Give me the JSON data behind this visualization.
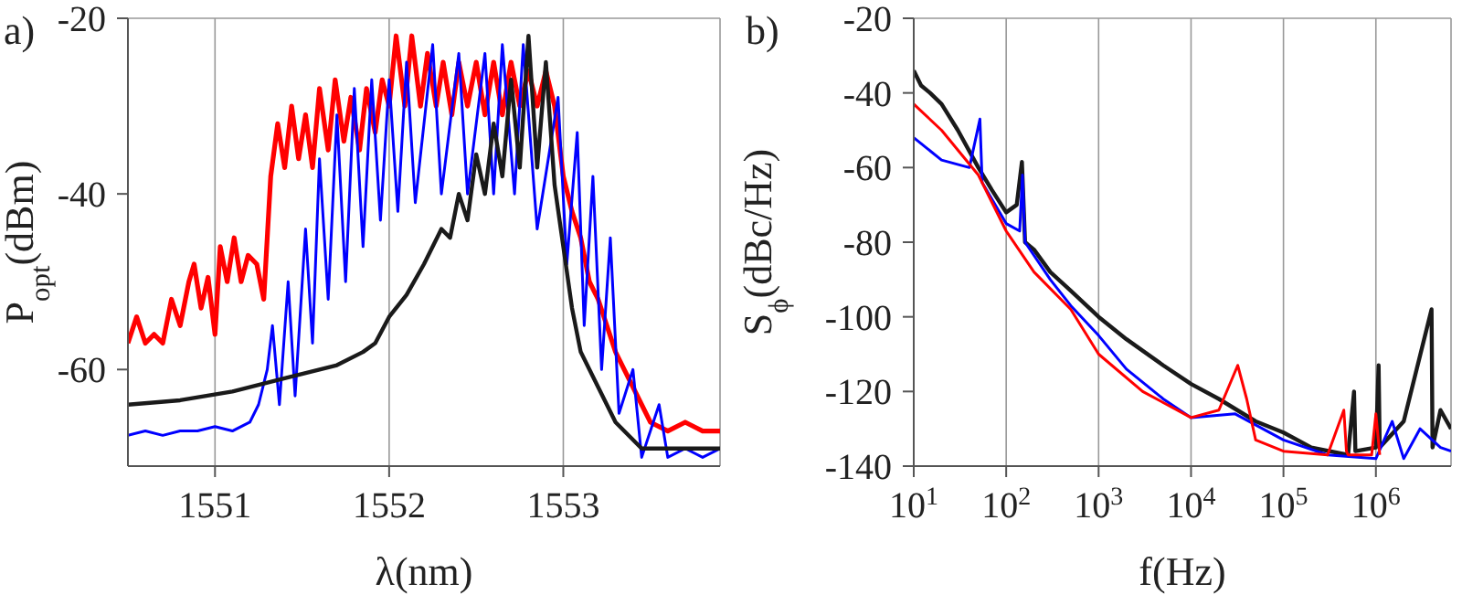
{
  "chart_data": [
    {
      "type": "line",
      "title": "a)",
      "xlabel": "λ(nm)",
      "ylabel": "P$_{opt}$(dBm)",
      "xlim": [
        1550.5,
        1553.9
      ],
      "xticks": [
        1551,
        1552,
        1553
      ],
      "ylim": [
        -71,
        -20
      ],
      "yticks": [
        -60,
        -40,
        -20
      ],
      "grid": true,
      "series": [
        {
          "color": "#ff0000",
          "x": [
            1550.5,
            1550.55,
            1550.6,
            1550.65,
            1550.7,
            1550.75,
            1550.8,
            1550.85,
            1550.88,
            1550.92,
            1550.96,
            1551.0,
            1551.03,
            1551.07,
            1551.11,
            1551.15,
            1551.19,
            1551.24,
            1551.28,
            1551.32,
            1551.36,
            1551.4,
            1551.44,
            1551.48,
            1551.52,
            1551.56,
            1551.6,
            1551.65,
            1551.69,
            1551.74,
            1551.78,
            1551.83,
            1551.87,
            1551.92,
            1551.96,
            1552.0,
            1552.04,
            1552.09,
            1552.13,
            1552.18,
            1552.22,
            1552.27,
            1552.31,
            1552.36,
            1552.4,
            1552.45,
            1552.5,
            1552.55,
            1552.6,
            1552.65,
            1552.7,
            1552.75,
            1552.8,
            1552.85,
            1552.9,
            1552.95,
            1553.0,
            1553.05,
            1553.1,
            1553.15,
            1553.2,
            1553.25,
            1553.3,
            1553.35,
            1553.4,
            1553.45,
            1553.5,
            1553.6,
            1553.7,
            1553.8,
            1553.9
          ],
          "values": [
            -57,
            -54,
            -57,
            -56,
            -57,
            -52,
            -55,
            -50,
            -48,
            -53,
            -49.5,
            -56,
            -46,
            -50,
            -45,
            -50,
            -47,
            -48,
            -52,
            -38,
            -32,
            -37,
            -30,
            -36,
            -31,
            -37,
            -28,
            -35,
            -27,
            -34,
            -29,
            -35,
            -28,
            -33,
            -27,
            -30,
            -22,
            -30,
            -22,
            -30,
            -24,
            -30,
            -25,
            -31,
            -25,
            -30,
            -25,
            -31,
            -25,
            -31,
            -25,
            -30,
            -26,
            -30,
            -26,
            -30,
            -38,
            -42,
            -45,
            -50,
            -52,
            -55,
            -58,
            -60,
            -62,
            -64,
            -66,
            -67,
            -66,
            -67,
            -67
          ]
        },
        {
          "color": "#0000ff",
          "x": [
            1550.5,
            1550.6,
            1550.7,
            1550.8,
            1550.9,
            1551.0,
            1551.1,
            1551.2,
            1551.25,
            1551.3,
            1551.33,
            1551.37,
            1551.42,
            1551.46,
            1551.52,
            1551.56,
            1551.6,
            1551.65,
            1551.7,
            1551.75,
            1551.8,
            1551.85,
            1551.9,
            1551.95,
            1552.0,
            1552.05,
            1552.1,
            1552.15,
            1552.25,
            1552.3,
            1552.4,
            1552.45,
            1552.55,
            1552.6,
            1552.65,
            1552.72,
            1552.77,
            1552.85,
            1552.97,
            1553.02,
            1553.08,
            1553.12,
            1553.17,
            1553.22,
            1553.27,
            1553.32,
            1553.4,
            1553.45,
            1553.55,
            1553.6,
            1553.7,
            1553.8,
            1553.9
          ],
          "values": [
            -67.5,
            -67,
            -67.5,
            -67,
            -67,
            -66.5,
            -67,
            -66,
            -64,
            -60,
            -55,
            -64,
            -50,
            -63,
            -44,
            -57,
            -36,
            -52,
            -31,
            -50,
            -28,
            -46,
            -27,
            -43,
            -27,
            -42,
            -25,
            -41,
            -23,
            -40,
            -24,
            -40,
            -24,
            -40,
            -23,
            -40,
            -23,
            -44,
            -29,
            -48,
            -33,
            -55,
            -38,
            -60,
            -45,
            -65,
            -60,
            -70,
            -64,
            -70,
            -69,
            -70,
            -69
          ]
        },
        {
          "color": "#1a1a1a",
          "x": [
            1550.5,
            1550.8,
            1551.1,
            1551.4,
            1551.7,
            1551.85,
            1551.92,
            1552.0,
            1552.1,
            1552.2,
            1552.3,
            1552.35,
            1552.4,
            1552.45,
            1552.5,
            1552.55,
            1552.6,
            1552.65,
            1552.7,
            1552.75,
            1552.8,
            1552.85,
            1552.9,
            1552.95,
            1553.0,
            1553.05,
            1553.1,
            1553.2,
            1553.3,
            1553.45,
            1553.6,
            1553.75,
            1553.9
          ],
          "values": [
            -64,
            -63.5,
            -62.5,
            -61,
            -59.5,
            -58,
            -57,
            -54,
            -51.5,
            -48,
            -44,
            -45,
            -40,
            -43,
            -35.5,
            -40,
            -32,
            -38,
            -27,
            -37,
            -22,
            -37,
            -25,
            -39,
            -46,
            -53,
            -58,
            -62,
            -66,
            -69,
            -69,
            -69,
            -69
          ]
        }
      ]
    },
    {
      "type": "line",
      "title": "b)",
      "xlabel": "f(Hz)",
      "ylabel": "S$_{ϕ}$(dBc/Hz)",
      "log": "x",
      "xlim": [
        10,
        6500000
      ],
      "xticks": [
        {
          "value": 10,
          "label": "10$^{1}$"
        },
        {
          "value": 100,
          "label": "10$^{2}$"
        },
        {
          "value": 1000,
          "label": "10$^{3}$"
        },
        {
          "value": 10000,
          "label": "10$^{4}$"
        },
        {
          "value": 100000,
          "label": "10$^{5}$"
        },
        {
          "value": 1000000,
          "label": "10$^{6}$"
        }
      ],
      "ylim": [
        -140,
        -20
      ],
      "yticks": [
        -140,
        -120,
        -100,
        -80,
        -60,
        -40,
        -20
      ],
      "grid": true,
      "series": [
        {
          "color": "#1a1a1a",
          "x": [
            10,
            12,
            15,
            20,
            30,
            50,
            70,
            100,
            130,
            148,
            160,
            200,
            300,
            500,
            1000,
            2000,
            5000,
            10000,
            20000,
            50000,
            100000,
            200000,
            500000,
            580000,
            600000,
            1000000,
            1070000,
            1100000,
            2000000,
            4000000,
            4100000,
            5000000,
            6500000
          ],
          "values": [
            -34,
            -38,
            -40,
            -43,
            -50,
            -60,
            -66,
            -72,
            -70,
            -58.5,
            -80,
            -82,
            -88,
            -93,
            -100,
            -106,
            -113,
            -118,
            -122,
            -128,
            -131,
            -135,
            -137,
            -120,
            -136,
            -135,
            -113,
            -135,
            -128,
            -98,
            -135,
            -125,
            -130
          ]
        },
        {
          "color": "#0000ff",
          "x": [
            10,
            20,
            40,
            52,
            55,
            100,
            140,
            150,
            160,
            300,
            500,
            1000,
            2000,
            5000,
            10000,
            30000,
            100000,
            300000,
            1000000,
            1500000,
            2000000,
            3000000,
            5000000,
            6500000
          ],
          "values": [
            -52,
            -58,
            -60,
            -47,
            -64,
            -75,
            -77,
            -62,
            -80,
            -90,
            -97,
            -105,
            -114,
            -122,
            -127,
            -126,
            -133,
            -137,
            -138,
            -128,
            -138,
            -130,
            -135,
            -136
          ]
        },
        {
          "color": "#ff0000",
          "x": [
            10,
            20,
            50,
            100,
            200,
            500,
            1000,
            3000,
            10000,
            20000,
            32000,
            40000,
            50000,
            100000,
            300000,
            450000,
            480000,
            500000,
            900000,
            1000000,
            1100000
          ],
          "values": [
            -43,
            -50,
            -62,
            -77,
            -88,
            -98,
            -110,
            -120,
            -127,
            -125,
            -113,
            -122,
            -133,
            -136,
            -137,
            -125,
            -136,
            -137,
            -137,
            -126,
            -137
          ]
        }
      ]
    }
  ]
}
